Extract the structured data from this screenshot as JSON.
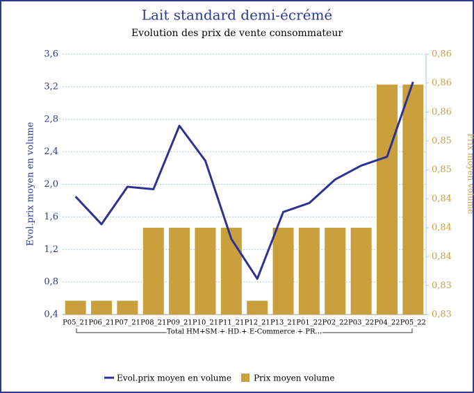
{
  "chart_data": {
    "type": "bar_line",
    "title": "Lait standard demi-écrémé",
    "subtitle": "Evolution des prix de vente consommateur",
    "y_label": "Evol.prix moyen en volume",
    "y2_label": "Prix moyen volume",
    "group_label": "Total HM+SM + HD + E-Commerce + PR...",
    "categories": [
      "P05_21",
      "P06_21",
      "P07_21",
      "P08_21",
      "P09_21",
      "P10_21",
      "P11_21",
      "P12_21",
      "P13_21",
      "P01_22",
      "P02_22",
      "P03_22",
      "P04_22",
      "P05_22"
    ],
    "series": [
      {
        "name": "Evol.prix moyen en volume",
        "kind": "line",
        "color": "#2e3192",
        "axis": "y",
        "values": [
          1.85,
          1.51,
          1.97,
          1.94,
          2.72,
          2.29,
          1.33,
          0.84,
          1.66,
          1.77,
          2.06,
          2.23,
          2.34,
          3.26
        ]
      },
      {
        "name": "Prix moyen volume",
        "kind": "bar",
        "color": "#c9a03c",
        "axis": "y2",
        "values": [
          0.8289,
          0.8289,
          0.8289,
          0.839,
          0.839,
          0.839,
          0.839,
          0.8289,
          0.839,
          0.839,
          0.839,
          0.839,
          0.8588,
          0.8588
        ]
      }
    ],
    "ylim": [
      0.4,
      3.6
    ],
    "yticks": [
      {
        "value": 0.4,
        "label": "0,4"
      },
      {
        "value": 0.8,
        "label": "0,8"
      },
      {
        "value": 1.2,
        "label": "1,2"
      },
      {
        "value": 1.6,
        "label": "1,6"
      },
      {
        "value": 2.0,
        "label": "2,0"
      },
      {
        "value": 2.4,
        "label": "2,4"
      },
      {
        "value": 2.8,
        "label": "2,8"
      },
      {
        "value": 3.2,
        "label": "3,2"
      },
      {
        "value": 3.6,
        "label": "3,6"
      }
    ],
    "y2lim": [
      0.827,
      0.863
    ],
    "y2ticks": [
      {
        "value": 0.827,
        "label": "0,83"
      },
      {
        "value": 0.831,
        "label": "0,83"
      },
      {
        "value": 0.835,
        "label": "0,84"
      },
      {
        "value": 0.839,
        "label": "0,84"
      },
      {
        "value": 0.843,
        "label": "0,84"
      },
      {
        "value": 0.847,
        "label": "0,85"
      },
      {
        "value": 0.851,
        "label": "0,85"
      },
      {
        "value": 0.855,
        "label": "0,86"
      },
      {
        "value": 0.859,
        "label": "0,86"
      },
      {
        "value": 0.863,
        "label": "0,86"
      }
    ],
    "grid": true
  }
}
